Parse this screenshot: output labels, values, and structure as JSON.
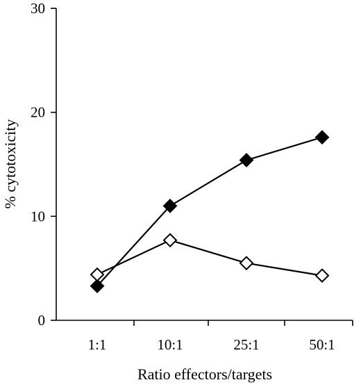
{
  "chart_data": {
    "type": "line",
    "xlabel": "Ratio effectors/targets",
    "ylabel": "% cytotoxicity",
    "categories": [
      "1:1",
      "10:1",
      "25:1",
      "50:1"
    ],
    "ylim": [
      0,
      30
    ],
    "yticks": [
      0,
      10,
      20,
      30
    ],
    "grid": false,
    "series": [
      {
        "marker": "filled-diamond",
        "color": "#000000",
        "values": [
          3.3,
          11.0,
          15.4,
          17.6
        ]
      },
      {
        "marker": "open-diamond",
        "color": "#000000",
        "values": [
          4.4,
          7.7,
          5.5,
          4.3
        ]
      }
    ]
  }
}
